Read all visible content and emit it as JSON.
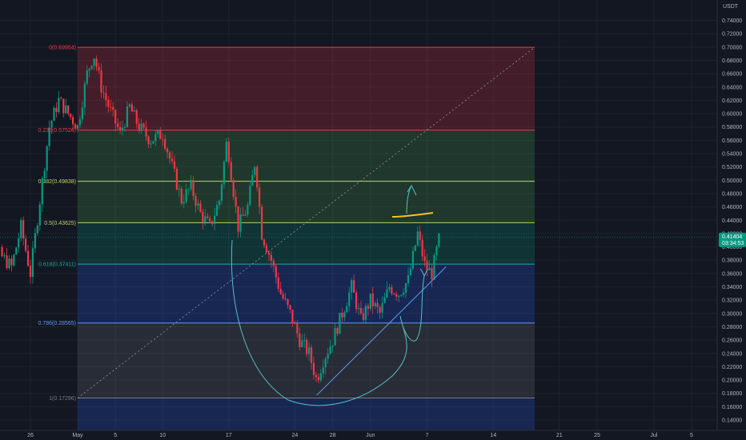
{
  "chart_data": {
    "type": "candlestick",
    "currency": "USDT",
    "last_price": "0.41404",
    "countdown": "03:34:53",
    "price_ticks": [
      "0.74000",
      "0.72000",
      "0.70000",
      "0.68000",
      "0.66000",
      "0.64000",
      "0.62000",
      "0.60000",
      "0.58000",
      "0.56000",
      "0.54000",
      "0.52000",
      "0.50000",
      "0.48000",
      "0.46000",
      "0.44000",
      "0.42000",
      "0.40000",
      "0.38000",
      "0.36000",
      "0.34000",
      "0.32000",
      "0.30000",
      "0.28000",
      "0.26000",
      "0.24000",
      "0.22000",
      "0.20000",
      "0.18000",
      "0.16000",
      "0.14000",
      "0.12000"
    ],
    "price_tick_values": [
      0.74,
      0.72,
      0.7,
      0.68,
      0.66,
      0.64,
      0.62,
      0.6,
      0.58,
      0.56,
      0.54,
      0.52,
      0.5,
      0.48,
      0.46,
      0.44,
      0.42,
      0.4,
      0.38,
      0.36,
      0.34,
      0.32,
      0.3,
      0.28,
      0.26,
      0.24,
      0.22,
      0.2,
      0.18,
      0.16,
      0.14,
      0.12
    ],
    "time_ticks": [
      {
        "label": "26",
        "day": -5
      },
      {
        "label": "May",
        "day": 0
      },
      {
        "label": "5",
        "day": 4
      },
      {
        "label": "10",
        "day": 9
      },
      {
        "label": "17",
        "day": 16
      },
      {
        "label": "24",
        "day": 23
      },
      {
        "label": "28",
        "day": 27
      },
      {
        "label": "Jun",
        "day": 31
      },
      {
        "label": "7",
        "day": 37
      },
      {
        "label": "14",
        "day": 44
      },
      {
        "label": "21",
        "day": 51
      },
      {
        "label": "25",
        "day": 55
      },
      {
        "label": "Jul",
        "day": 61
      },
      {
        "label": "5",
        "day": 65
      }
    ],
    "fib_levels": [
      {
        "label": "0(0.69954)",
        "value": 0.69954,
        "color": "#f23645"
      },
      {
        "label": "0.236(0.57526)",
        "value": 0.57526,
        "color": "#f23645"
      },
      {
        "label": "0.382(0.49838)",
        "value": 0.49838,
        "color": "#b9d36a"
      },
      {
        "label": "0.5(0.43625)",
        "value": 0.43625,
        "color": "#b9d36a"
      },
      {
        "label": "0.618(0.37411)",
        "value": 0.37411,
        "color": "#22ab94"
      },
      {
        "label": "0.786(0.28565)",
        "value": 0.28565,
        "color": "#5b9cf6"
      },
      {
        "label": "1(0.17296)",
        "value": 0.17296,
        "color": "#787b86"
      }
    ],
    "fib_zones": [
      {
        "from": 0.69954,
        "to": 0.57526,
        "color": "#f23645"
      },
      {
        "from": 0.57526,
        "to": 0.49838,
        "color": "#4caf50"
      },
      {
        "from": 0.49838,
        "to": 0.43625,
        "color": "#4caf50"
      },
      {
        "from": 0.43625,
        "to": 0.37411,
        "color": "#089981"
      },
      {
        "from": 0.37411,
        "to": 0.28565,
        "color": "#2962ff"
      },
      {
        "from": 0.28565,
        "to": 0.17296,
        "color": "#787b86"
      },
      {
        "from": 0.17296,
        "to": 0.1,
        "color": "#2962ff"
      }
    ],
    "fib_range_days": [
      0,
      31
    ],
    "close_path": [
      {
        "day": -11,
        "price": 0.46
      },
      {
        "day": -9,
        "price": 0.4
      },
      {
        "day": -7,
        "price": 0.37
      },
      {
        "day": -6,
        "price": 0.43
      },
      {
        "day": -5,
        "price": 0.36
      },
      {
        "day": -4,
        "price": 0.47
      },
      {
        "day": -3,
        "price": 0.58
      },
      {
        "day": -2,
        "price": 0.62
      },
      {
        "day": -1,
        "price": 0.6
      },
      {
        "day": 0,
        "price": 0.58
      },
      {
        "day": 1,
        "price": 0.66
      },
      {
        "day": 1.7,
        "price": 0.69
      },
      {
        "day": 2.5,
        "price": 0.64
      },
      {
        "day": 3.3,
        "price": 0.61
      },
      {
        "day": 4.5,
        "price": 0.57
      },
      {
        "day": 5.5,
        "price": 0.61
      },
      {
        "day": 6.5,
        "price": 0.58
      },
      {
        "day": 7.7,
        "price": 0.56
      },
      {
        "day": 9,
        "price": 0.57
      },
      {
        "day": 10,
        "price": 0.52
      },
      {
        "day": 11,
        "price": 0.47
      },
      {
        "day": 12,
        "price": 0.49
      },
      {
        "day": 13,
        "price": 0.45
      },
      {
        "day": 14,
        "price": 0.43
      },
      {
        "day": 15,
        "price": 0.47
      },
      {
        "day": 15.8,
        "price": 0.56
      },
      {
        "day": 17,
        "price": 0.43
      },
      {
        "day": 18,
        "price": 0.46
      },
      {
        "day": 18.8,
        "price": 0.53
      },
      {
        "day": 19.5,
        "price": 0.42
      },
      {
        "day": 20.5,
        "price": 0.38
      },
      {
        "day": 21.5,
        "price": 0.33
      },
      {
        "day": 22.5,
        "price": 0.3
      },
      {
        "day": 23.5,
        "price": 0.26
      },
      {
        "day": 24.5,
        "price": 0.24
      },
      {
        "day": 25.3,
        "price": 0.2
      },
      {
        "day": 26,
        "price": 0.23
      },
      {
        "day": 27,
        "price": 0.26
      },
      {
        "day": 28,
        "price": 0.3
      },
      {
        "day": 29,
        "price": 0.34
      },
      {
        "day": 30,
        "price": 0.29
      },
      {
        "day": 31,
        "price": 0.32
      },
      {
        "day": 32,
        "price": 0.3
      },
      {
        "day": 33,
        "price": 0.34
      },
      {
        "day": 34,
        "price": 0.33
      },
      {
        "day": 35,
        "price": 0.35
      },
      {
        "day": 36,
        "price": 0.42
      },
      {
        "day": 36.8,
        "price": 0.37
      },
      {
        "day": 37.5,
        "price": 0.36
      },
      {
        "day": 38.3,
        "price": 0.41404
      }
    ],
    "annotations": {
      "trendline": [
        {
          "day": 25.3,
          "price": 0.177
        },
        {
          "day": 39,
          "price": 0.37
        }
      ],
      "dotted_diagonal": [
        {
          "day": 0,
          "price": 0.17296
        },
        {
          "day": 31,
          "price": 0.69954
        }
      ]
    },
    "colors": {
      "up": "#089981",
      "down": "#f23645",
      "background": "#131722",
      "grid": "#1e222d",
      "axis_text": "#b2b5be",
      "price_badge": "#089981",
      "yellow_mark": "#f5c518",
      "drawing": "#56c0c4"
    }
  }
}
